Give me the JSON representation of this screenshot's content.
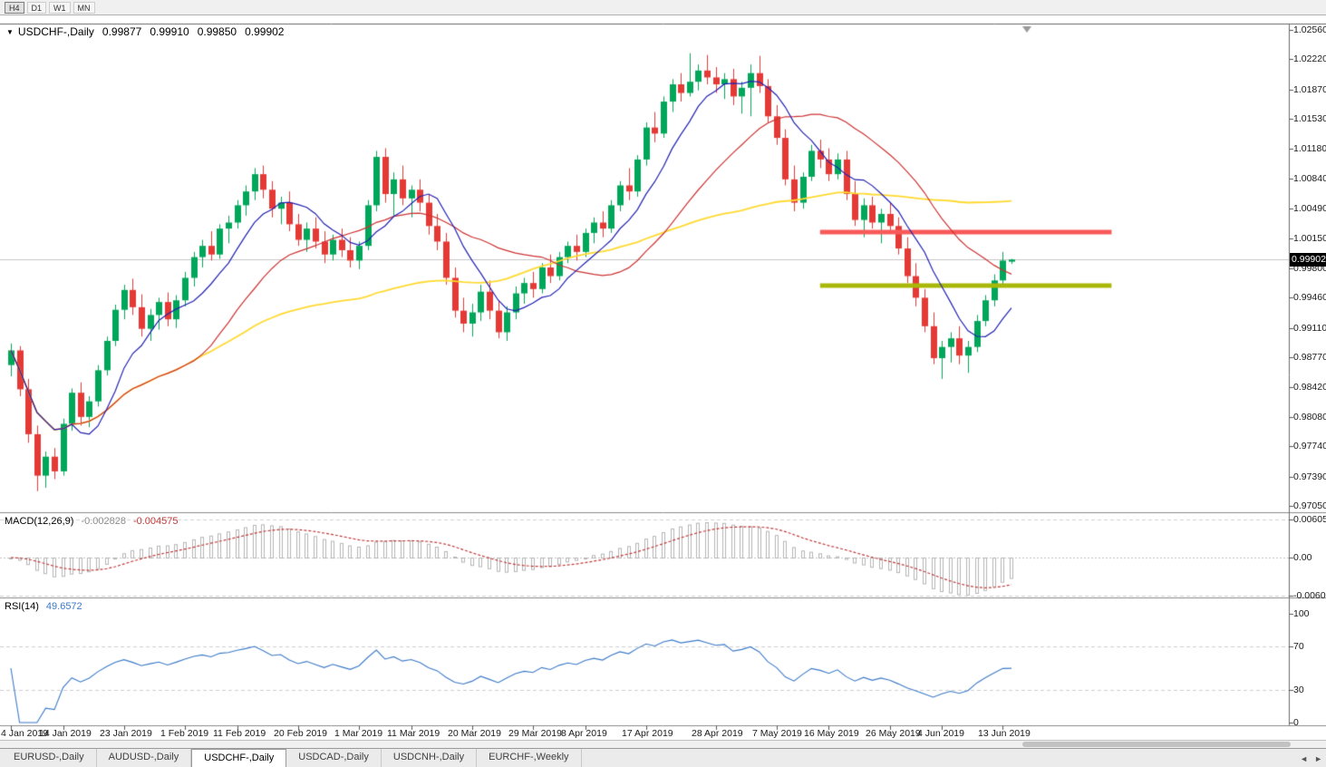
{
  "toolbar": {
    "timeframes": [
      {
        "label": "H4",
        "active": true
      },
      {
        "label": "D1",
        "active": false
      },
      {
        "label": "W1",
        "active": false
      },
      {
        "label": "MN",
        "active": false
      }
    ]
  },
  "symbol_header": {
    "marker": "▼",
    "symbol": "USDCHF-,Daily",
    "open": "0.99877",
    "high": "0.99910",
    "low": "0.99850",
    "close": "0.99902"
  },
  "price_axis": {
    "labels": [
      "1.02560",
      "1.02220",
      "1.01870",
      "1.01530",
      "1.01180",
      "1.00840",
      "1.00490",
      "1.00150",
      "0.99800",
      "0.99460",
      "0.99110",
      "0.98770",
      "0.98420",
      "0.98080",
      "0.97740",
      "0.97390",
      "0.97050"
    ],
    "current_price_label": "0.99902"
  },
  "macd_panel": {
    "title": "MACD(12,26,9)",
    "main_value": "-0.002828",
    "signal_value": "-0.004575",
    "axis_labels": [
      "0.006058",
      "0.00",
      "-0.006096"
    ]
  },
  "rsi_panel": {
    "title": "RSI(14)",
    "value": "49.6572",
    "axis_labels": [
      "100",
      "70",
      "30",
      "0"
    ]
  },
  "date_axis": [
    {
      "text": "4 Jan 2019",
      "index": 0
    },
    {
      "text": "14 Jan 2019",
      "index": 6
    },
    {
      "text": "23 Jan 2019",
      "index": 13
    },
    {
      "text": "1 Feb 2019",
      "index": 20
    },
    {
      "text": "11 Feb 2019",
      "index": 26
    },
    {
      "text": "20 Feb 2019",
      "index": 33
    },
    {
      "text": "1 Mar 2019",
      "index": 40
    },
    {
      "text": "11 Mar 2019",
      "index": 46
    },
    {
      "text": "20 Mar 2019",
      "index": 53
    },
    {
      "text": "29 Mar 2019",
      "index": 60
    },
    {
      "text": "8 Apr 2019",
      "index": 66
    },
    {
      "text": "17 Apr 2019",
      "index": 73
    },
    {
      "text": "28 Apr 2019",
      "index": 81
    },
    {
      "text": "7 May 2019",
      "index": 88
    },
    {
      "text": "16 May 2019",
      "index": 94
    },
    {
      "text": "26 May 2019",
      "index": 101
    },
    {
      "text": "4 Jun 2019",
      "index": 107
    },
    {
      "text": "13 Jun 2019",
      "index": 114
    }
  ],
  "tab_bar": {
    "tabs": [
      {
        "label": "EURUSD-,Daily",
        "active": false
      },
      {
        "label": "AUDUSD-,Daily",
        "active": false
      },
      {
        "label": "USDCHF-,Daily",
        "active": true
      },
      {
        "label": "USDCAD-,Daily",
        "active": false
      },
      {
        "label": "USDCNH-,Daily",
        "active": false
      },
      {
        "label": "EURCHF-,Weekly",
        "active": false
      }
    ],
    "scroll_left_icon": "◄",
    "scroll_right_icon": "►"
  },
  "chart_data": {
    "type": "candlestick",
    "symbol": "USDCHF-",
    "timeframe": "Daily",
    "price_range": {
      "top": 1.0256,
      "bottom": 0.9705
    },
    "current_price": 0.99902,
    "up_color": "#00a65a",
    "down_color": "#e53935",
    "bid_line_color": "#c6c6c6",
    "candles": [
      [
        0.9868,
        0.9893,
        0.9855,
        0.9885
      ],
      [
        0.9885,
        0.989,
        0.9832,
        0.984
      ],
      [
        0.984,
        0.9852,
        0.9778,
        0.9788
      ],
      [
        0.9788,
        0.9798,
        0.9722,
        0.974
      ],
      [
        0.974,
        0.9768,
        0.9726,
        0.9762
      ],
      [
        0.9762,
        0.9772,
        0.9736,
        0.9745
      ],
      [
        0.9745,
        0.9806,
        0.974,
        0.98
      ],
      [
        0.98,
        0.9841,
        0.9792,
        0.9836
      ],
      [
        0.9836,
        0.9848,
        0.9798,
        0.9808
      ],
      [
        0.9808,
        0.9832,
        0.9796,
        0.9826
      ],
      [
        0.9826,
        0.9868,
        0.982,
        0.9862
      ],
      [
        0.9862,
        0.9901,
        0.9856,
        0.9896
      ],
      [
        0.9896,
        0.9938,
        0.989,
        0.9932
      ],
      [
        0.9932,
        0.9961,
        0.9921,
        0.9955
      ],
      [
        0.9955,
        0.9968,
        0.9926,
        0.9935
      ],
      [
        0.9935,
        0.995,
        0.9901,
        0.991
      ],
      [
        0.991,
        0.9933,
        0.9896,
        0.9926
      ],
      [
        0.9926,
        0.9946,
        0.9909,
        0.9941
      ],
      [
        0.9941,
        0.9952,
        0.9913,
        0.9921
      ],
      [
        0.9921,
        0.9949,
        0.9911,
        0.9943
      ],
      [
        0.9943,
        0.9976,
        0.9936,
        0.9969
      ],
      [
        0.9969,
        0.9999,
        0.9959,
        0.9993
      ],
      [
        0.9993,
        1.0013,
        0.9981,
        1.0006
      ],
      [
        1.0006,
        1.0023,
        0.9989,
        0.9996
      ],
      [
        0.9996,
        1.0031,
        0.9991,
        1.0026
      ],
      [
        1.0026,
        1.0041,
        1.0009,
        1.0033
      ],
      [
        1.0033,
        1.0059,
        1.0026,
        1.0053
      ],
      [
        1.0053,
        1.0076,
        1.0041,
        1.0069
      ],
      [
        1.0069,
        1.0096,
        1.0059,
        1.0089
      ],
      [
        1.0089,
        1.0099,
        1.0061,
        1.0071
      ],
      [
        1.0071,
        1.0081,
        1.0039,
        1.0049
      ],
      [
        1.0049,
        1.0063,
        1.0031,
        1.0056
      ],
      [
        1.0056,
        1.0069,
        1.0023,
        1.0031
      ],
      [
        1.0031,
        1.0043,
        1.0006,
        1.0013
      ],
      [
        1.0013,
        1.0033,
        0.9999,
        1.0026
      ],
      [
        1.0026,
        1.0039,
        1.0003,
        1.0011
      ],
      [
        1.0011,
        1.0023,
        0.9986,
        0.9996
      ],
      [
        0.9996,
        1.0019,
        0.9989,
        1.0013
      ],
      [
        1.0013,
        1.0026,
        0.9993,
        1.0001
      ],
      [
        1.0001,
        1.0016,
        0.9981,
        0.9989
      ],
      [
        0.9989,
        1.0011,
        0.9979,
        1.0006
      ],
      [
        1.0006,
        1.0059,
        1.0001,
        1.0053
      ],
      [
        1.0053,
        1.0116,
        1.0046,
        1.0109
      ],
      [
        1.0109,
        1.0119,
        1.0056,
        1.0066
      ],
      [
        1.0066,
        1.0091,
        1.0041,
        1.0083
      ],
      [
        1.0083,
        1.0099,
        1.0053,
        1.0061
      ],
      [
        1.0061,
        1.0076,
        1.0039,
        1.0071
      ],
      [
        1.0071,
        1.0083,
        1.0046,
        1.0056
      ],
      [
        1.0056,
        1.0066,
        1.0019,
        1.0029
      ],
      [
        1.0029,
        1.0043,
        1.0001,
        1.0011
      ],
      [
        1.0011,
        1.0021,
        0.9961,
        0.9969
      ],
      [
        0.9969,
        0.9981,
        0.9923,
        0.9931
      ],
      [
        0.9931,
        0.9946,
        0.9906,
        0.9916
      ],
      [
        0.9916,
        0.9939,
        0.9901,
        0.9929
      ],
      [
        0.9929,
        0.9961,
        0.9919,
        0.9953
      ],
      [
        0.9953,
        0.9966,
        0.9921,
        0.9931
      ],
      [
        0.9931,
        0.9943,
        0.9899,
        0.9906
      ],
      [
        0.9906,
        0.9936,
        0.9896,
        0.9929
      ],
      [
        0.9929,
        0.9959,
        0.9921,
        0.9951
      ],
      [
        0.9951,
        0.9969,
        0.9939,
        0.9963
      ],
      [
        0.9963,
        0.9976,
        0.9946,
        0.9956
      ],
      [
        0.9956,
        0.9986,
        0.9951,
        0.9981
      ],
      [
        0.9981,
        0.9996,
        0.9963,
        0.9971
      ],
      [
        0.9971,
        0.9999,
        0.9966,
        0.9993
      ],
      [
        0.9993,
        1.0011,
        0.9986,
        1.0006
      ],
      [
        1.0006,
        1.0019,
        0.9989,
        0.9999
      ],
      [
        0.9999,
        1.0026,
        0.9993,
        1.0021
      ],
      [
        1.0021,
        1.0039,
        1.0009,
        1.0033
      ],
      [
        1.0033,
        1.0046,
        1.0016,
        1.0026
      ],
      [
        1.0026,
        1.0059,
        1.0021,
        1.0053
      ],
      [
        1.0053,
        1.0081,
        1.0046,
        1.0076
      ],
      [
        1.0076,
        1.0096,
        1.0059,
        1.0069
      ],
      [
        1.0069,
        1.0111,
        1.0063,
        1.0106
      ],
      [
        1.0106,
        1.0149,
        1.0099,
        1.0143
      ],
      [
        1.0143,
        1.0161,
        1.0126,
        1.0136
      ],
      [
        1.0136,
        1.0179,
        1.0131,
        1.0173
      ],
      [
        1.0173,
        1.0199,
        1.0161,
        1.0193
      ],
      [
        1.0193,
        1.0206,
        1.0173,
        1.0183
      ],
      [
        1.0183,
        1.0229,
        1.0179,
        1.0196
      ],
      [
        1.0196,
        1.0216,
        1.0186,
        1.0209
      ],
      [
        1.0209,
        1.0227,
        1.0193,
        1.0201
      ],
      [
        1.0201,
        1.0213,
        1.0183,
        1.0193
      ],
      [
        1.0193,
        1.0206,
        1.0176,
        1.0199
      ],
      [
        1.0199,
        1.0211,
        1.0169,
        1.0179
      ],
      [
        1.0179,
        1.0196,
        1.0159,
        1.0189
      ],
      [
        1.0189,
        1.0216,
        1.0156,
        1.0206
      ],
      [
        1.0206,
        1.0226,
        1.0183,
        1.0191
      ],
      [
        1.0191,
        1.0199,
        1.0149,
        1.0156
      ],
      [
        1.0156,
        1.0169,
        1.0123,
        1.0131
      ],
      [
        1.0131,
        1.0141,
        1.0076,
        1.0083
      ],
      [
        1.0083,
        1.0099,
        1.0046,
        1.0056
      ],
      [
        1.0056,
        1.0091,
        1.0049,
        1.0086
      ],
      [
        1.0086,
        1.0123,
        1.0081,
        1.0116
      ],
      [
        1.0116,
        1.0129,
        1.0096,
        1.0106
      ],
      [
        1.0106,
        1.0119,
        1.0081,
        1.0089
      ],
      [
        1.0089,
        1.0113,
        1.0083,
        1.0106
      ],
      [
        1.0106,
        1.0116,
        1.0059,
        1.0066
      ],
      [
        1.0066,
        1.0081,
        1.0029,
        1.0036
      ],
      [
        1.0036,
        1.0061,
        1.0016,
        1.0053
      ],
      [
        1.0053,
        1.0063,
        1.0026,
        1.0033
      ],
      [
        1.0033,
        1.0049,
        1.0009,
        1.0043
      ],
      [
        1.0043,
        1.0056,
        1.0021,
        1.0029
      ],
      [
        1.0029,
        1.0039,
        0.9996,
        1.0003
      ],
      [
        1.0003,
        1.0016,
        0.9963,
        0.9971
      ],
      [
        0.9971,
        0.9986,
        0.9936,
        0.9946
      ],
      [
        0.9946,
        0.9956,
        0.9906,
        0.9913
      ],
      [
        0.9913,
        0.9929,
        0.9869,
        0.9876
      ],
      [
        0.9876,
        0.9896,
        0.9852,
        0.9889
      ],
      [
        0.9889,
        0.9906,
        0.9871,
        0.9899
      ],
      [
        0.9899,
        0.9913,
        0.9869,
        0.9879
      ],
      [
        0.9879,
        0.9896,
        0.9859,
        0.9889
      ],
      [
        0.9889,
        0.9926,
        0.9883,
        0.9919
      ],
      [
        0.9919,
        0.9949,
        0.9913,
        0.9943
      ],
      [
        0.9943,
        0.9973,
        0.9936,
        0.9966
      ],
      [
        0.9966,
        0.9999,
        0.9959,
        0.9989
      ],
      [
        0.99877,
        0.9991,
        0.9985,
        0.99902
      ]
    ],
    "moving_averages": [
      {
        "name": "MA fast",
        "period": 8,
        "color": "#2222b2",
        "width": 1.2
      },
      {
        "name": "MA medium",
        "period": 21,
        "color": "#cd3333",
        "width": 1.2
      },
      {
        "name": "MA slow",
        "period": 55,
        "color": "#ffd930",
        "width": 1.8
      }
    ],
    "horizontal_lines": [
      {
        "name": "resistance",
        "price": 1.0022,
        "color": "#f85a5a",
        "width": 5,
        "from_index": 93,
        "to_index": 126.5
      },
      {
        "name": "support",
        "price": 0.996,
        "color": "#a9b708",
        "width": 5,
        "from_index": 93,
        "to_index": 126.5
      }
    ],
    "macd": {
      "fast": 12,
      "slow": 26,
      "signal": 9,
      "hist_color": "#b5b5b5",
      "signal_color": "#c03a3a",
      "scale_max": 0.006058,
      "scale_min": -0.006096
    },
    "rsi": {
      "period": 14,
      "color": "#3c7ac8",
      "levels": [
        70,
        30
      ],
      "scale_max": 100,
      "scale_min": 0
    }
  }
}
